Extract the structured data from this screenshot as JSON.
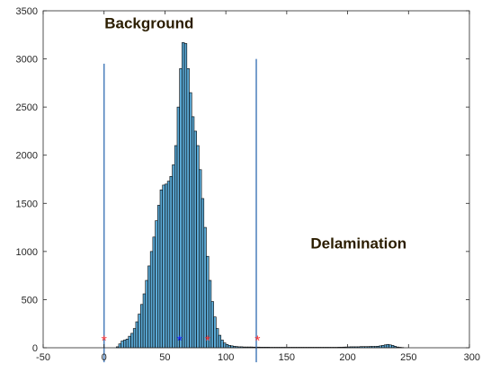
{
  "chart_data": {
    "type": "bar",
    "title": "",
    "xlabel": "",
    "ylabel": "",
    "xlim": [
      -50,
      300
    ],
    "ylim": [
      0,
      3500
    ],
    "grid": false,
    "x_ticks": [
      -50,
      0,
      50,
      100,
      150,
      200,
      250,
      300
    ],
    "y_ticks": [
      0,
      500,
      1000,
      1500,
      2000,
      2500,
      3000,
      3500
    ],
    "bin_width": 2,
    "bins": [
      [
        10,
        10
      ],
      [
        12,
        40
      ],
      [
        14,
        70
      ],
      [
        16,
        80
      ],
      [
        18,
        90
      ],
      [
        20,
        120
      ],
      [
        22,
        150
      ],
      [
        24,
        200
      ],
      [
        26,
        270
      ],
      [
        28,
        350
      ],
      [
        30,
        450
      ],
      [
        32,
        560
      ],
      [
        34,
        700
      ],
      [
        36,
        850
      ],
      [
        38,
        1000
      ],
      [
        40,
        1150
      ],
      [
        42,
        1320
      ],
      [
        44,
        1480
      ],
      [
        46,
        1640
      ],
      [
        48,
        1690
      ],
      [
        50,
        1700
      ],
      [
        52,
        1730
      ],
      [
        54,
        1780
      ],
      [
        56,
        1900
      ],
      [
        58,
        2100
      ],
      [
        60,
        2500
      ],
      [
        62,
        2900
      ],
      [
        64,
        3170
      ],
      [
        66,
        3160
      ],
      [
        68,
        2900
      ],
      [
        70,
        2650
      ],
      [
        72,
        2400
      ],
      [
        74,
        2250
      ],
      [
        76,
        2100
      ],
      [
        78,
        1850
      ],
      [
        80,
        1550
      ],
      [
        82,
        1250
      ],
      [
        84,
        950
      ],
      [
        86,
        700
      ],
      [
        88,
        480
      ],
      [
        90,
        320
      ],
      [
        92,
        200
      ],
      [
        94,
        130
      ],
      [
        96,
        80
      ],
      [
        98,
        50
      ],
      [
        100,
        35
      ],
      [
        102,
        25
      ],
      [
        104,
        20
      ],
      [
        106,
        15
      ],
      [
        108,
        12
      ],
      [
        110,
        10
      ],
      [
        112,
        10
      ],
      [
        114,
        8
      ],
      [
        116,
        8
      ],
      [
        118,
        8
      ],
      [
        120,
        8
      ],
      [
        122,
        7
      ],
      [
        124,
        7
      ],
      [
        126,
        7
      ],
      [
        128,
        6
      ],
      [
        130,
        6
      ],
      [
        132,
        6
      ],
      [
        134,
        6
      ],
      [
        136,
        5
      ],
      [
        138,
        5
      ],
      [
        140,
        5
      ],
      [
        142,
        5
      ],
      [
        144,
        5
      ],
      [
        146,
        5
      ],
      [
        148,
        5
      ],
      [
        150,
        5
      ],
      [
        152,
        5
      ],
      [
        154,
        5
      ],
      [
        156,
        5
      ],
      [
        158,
        5
      ],
      [
        160,
        5
      ],
      [
        162,
        5
      ],
      [
        164,
        5
      ],
      [
        166,
        5
      ],
      [
        168,
        5
      ],
      [
        170,
        5
      ],
      [
        172,
        5
      ],
      [
        174,
        5
      ],
      [
        176,
        5
      ],
      [
        178,
        5
      ],
      [
        180,
        5
      ],
      [
        182,
        5
      ],
      [
        184,
        5
      ],
      [
        186,
        5
      ],
      [
        188,
        5
      ],
      [
        190,
        5
      ],
      [
        192,
        6
      ],
      [
        194,
        6
      ],
      [
        196,
        7
      ],
      [
        198,
        8
      ],
      [
        200,
        9
      ],
      [
        202,
        10
      ],
      [
        204,
        10
      ],
      [
        206,
        10
      ],
      [
        208,
        10
      ],
      [
        210,
        12
      ],
      [
        212,
        12
      ],
      [
        214,
        12
      ],
      [
        216,
        12
      ],
      [
        218,
        14
      ],
      [
        220,
        14
      ],
      [
        222,
        14
      ],
      [
        224,
        16
      ],
      [
        226,
        20
      ],
      [
        228,
        25
      ],
      [
        230,
        30
      ],
      [
        232,
        35
      ],
      [
        234,
        30
      ],
      [
        236,
        25
      ],
      [
        238,
        15
      ],
      [
        240,
        8
      ],
      [
        242,
        5
      ],
      [
        244,
        3
      ]
    ],
    "vertical_lines": [
      {
        "x": 0,
        "y_top": 2950,
        "y_bottom": -150,
        "color": "#4a7ebb"
      },
      {
        "x": 125,
        "y_top": 3000,
        "y_bottom": -150,
        "color": "#4a7ebb"
      }
    ],
    "markers": [
      {
        "x": 0,
        "y": 90,
        "symbol": "*",
        "color": "#ff3030"
      },
      {
        "x": 62,
        "y": 90,
        "symbol": "*",
        "color": "#1010ff"
      },
      {
        "x": 85,
        "y": 90,
        "symbol": "*",
        "color": "#ff3030"
      },
      {
        "x": 126,
        "y": 90,
        "symbol": "*",
        "color": "#ff3030"
      }
    ],
    "annotations": [
      {
        "text": "Background",
        "x": 37,
        "y": 3320
      },
      {
        "text": "Delamination",
        "x": 209,
        "y": 1030
      }
    ],
    "bar_fill": "#5aa8d4",
    "bar_edge": "#000000"
  }
}
